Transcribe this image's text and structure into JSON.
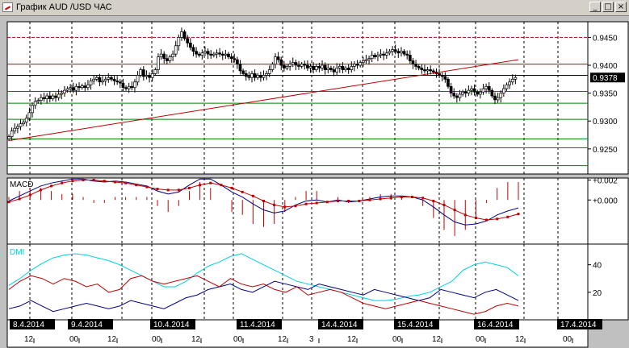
{
  "window": {
    "title": "График AUD /USD ЧАС",
    "buttons": [
      {
        "name": "minimize-button",
        "glyph": "_"
      },
      {
        "name": "maximize-button",
        "glyph": "□"
      },
      {
        "name": "close-button",
        "glyph": "×"
      }
    ]
  },
  "colors": {
    "background": "#FFFFFF",
    "grid": "#000000",
    "candle": "#000000",
    "support": "#008000",
    "resistance": "#C00000",
    "trendline": "#C00000",
    "macd_line": "#000080",
    "macd_signal": "#C00000",
    "macd_hist": "#C00000",
    "dmi_adx": "#00D0E0",
    "dmi_plus": "#000080",
    "dmi_minus": "#C00000",
    "price_tag_bg": "#000000",
    "price_tag_fg": "#FFFFFF"
  },
  "chart_data": [
    {
      "type": "candlestick",
      "title": "",
      "ylim": [
        0.9205,
        0.9478
      ],
      "yticks": [
        "0.9450",
        "0.9400",
        "0.9350",
        "0.9300",
        "0.9250"
      ],
      "last_price": "0.9378",
      "resistance_levels": [
        0.945,
        0.9402
      ],
      "mid_levels": [
        0.9382
      ],
      "support_levels": [
        0.9353,
        0.9332,
        0.9303,
        0.9268,
        0.9252,
        0.922
      ],
      "trendline": {
        "from": [
          0,
          0.9265
        ],
        "to": [
          174,
          0.941
        ]
      },
      "closes": [
        0.9272,
        0.9282,
        0.9287,
        0.929,
        0.9295,
        0.9298,
        0.9305,
        0.9315,
        0.9328,
        0.9335,
        0.9337,
        0.9342,
        0.934,
        0.9345,
        0.934,
        0.9345,
        0.9342,
        0.9348,
        0.935,
        0.9355,
        0.9358,
        0.936,
        0.9355,
        0.9362,
        0.936,
        0.9363,
        0.936,
        0.9365,
        0.9372,
        0.9375,
        0.9378,
        0.937,
        0.9372,
        0.9375,
        0.9378,
        0.9375,
        0.9372,
        0.937,
        0.9368,
        0.936,
        0.9358,
        0.9362,
        0.936,
        0.937,
        0.9382,
        0.9392,
        0.938,
        0.9382,
        0.9378,
        0.9385,
        0.9392,
        0.9415,
        0.942,
        0.9412,
        0.9408,
        0.9415,
        0.942,
        0.9435,
        0.945,
        0.946,
        0.9448,
        0.944,
        0.9432,
        0.9425,
        0.942,
        0.9418,
        0.9422,
        0.9425,
        0.942,
        0.9418,
        0.942,
        0.9422,
        0.942,
        0.9418,
        0.942,
        0.9415,
        0.9412,
        0.941,
        0.9402,
        0.939,
        0.9385,
        0.938,
        0.9378,
        0.9385,
        0.9378,
        0.9382,
        0.9378,
        0.9382,
        0.9385,
        0.9392,
        0.9402,
        0.9415,
        0.941,
        0.94,
        0.9395,
        0.9398,
        0.9402,
        0.9405,
        0.94,
        0.9398,
        0.9402,
        0.94,
        0.9395,
        0.9398,
        0.9392,
        0.9398,
        0.9395,
        0.94,
        0.9392,
        0.9395,
        0.9392,
        0.9388,
        0.9395,
        0.9398,
        0.9392,
        0.9395,
        0.9392,
        0.9398,
        0.9402,
        0.94,
        0.9405,
        0.9408,
        0.941,
        0.9412,
        0.9418,
        0.9415,
        0.9418,
        0.942,
        0.9418,
        0.9422,
        0.9425,
        0.9428,
        0.9425,
        0.9422,
        0.9425,
        0.942,
        0.9418,
        0.9408,
        0.9402,
        0.9398,
        0.9395,
        0.9392,
        0.939,
        0.9392,
        0.939,
        0.9388,
        0.9385,
        0.9382,
        0.938,
        0.9375,
        0.9362,
        0.935,
        0.9345,
        0.9342,
        0.9348,
        0.9352,
        0.935,
        0.9355,
        0.9358,
        0.9352,
        0.9348,
        0.9352,
        0.9358,
        0.9362,
        0.9355,
        0.9345,
        0.9338,
        0.9342,
        0.935,
        0.9358,
        0.9365,
        0.937,
        0.9375,
        0.9378
      ]
    },
    {
      "type": "line",
      "title": "MACD",
      "ylim": [
        -0.0045,
        0.0022
      ],
      "yticks": [
        "+0.002",
        "+0.000"
      ],
      "series": [
        {
          "role": "macd",
          "values": [
            -0.0001,
            0.0004,
            0.0009,
            0.0014,
            0.0017,
            0.0019,
            0.0021,
            0.0021,
            0.0019,
            0.0018,
            0.0019,
            0.0018,
            0.0016,
            0.0014,
            0.0009,
            0.0006,
            0.0008,
            0.0015,
            0.0021,
            0.0021,
            0.0015,
            0.0008,
            0.0003,
            -0.0004,
            -0.001,
            -0.0013,
            -0.0011,
            -0.0005,
            -0.0001,
            0.0,
            -0.0002,
            0.0,
            -0.0002,
            -0.0001,
            0.0001,
            0.0003,
            0.0004,
            0.0004,
            0.0003,
            0.0,
            -0.0007,
            -0.0015,
            -0.0022,
            -0.0025,
            -0.0024,
            -0.0021,
            -0.0015,
            -0.0011,
            -0.0008
          ]
        },
        {
          "role": "signal",
          "values": [
            -0.0002,
            0.0001,
            0.0005,
            0.001,
            0.0014,
            0.0017,
            0.0019,
            0.002,
            0.002,
            0.0019,
            0.0018,
            0.0017,
            0.0015,
            0.0013,
            0.0011,
            0.001,
            0.001,
            0.0012,
            0.0015,
            0.0017,
            0.0015,
            0.0012,
            0.0008,
            0.0004,
            -0.0001,
            -0.0005,
            -0.0007,
            -0.0006,
            -0.0004,
            -0.0003,
            -0.0002,
            -0.0001,
            -0.0001,
            -0.0001,
            0.0,
            0.0001,
            0.0002,
            0.0003,
            0.0003,
            0.0002,
            -0.0001,
            -0.0005,
            -0.001,
            -0.0015,
            -0.0018,
            -0.002,
            -0.0019,
            -0.0017,
            -0.0014
          ]
        }
      ]
    },
    {
      "type": "line",
      "title": "DMI",
      "ylim": [
        0,
        55
      ],
      "yticks": [
        "40",
        "20"
      ],
      "series": [
        {
          "role": "adx",
          "values": [
            25,
            30,
            36,
            41,
            45,
            47,
            48,
            47,
            45,
            43,
            40,
            36,
            32,
            28,
            24,
            24,
            28,
            34,
            39,
            42,
            46,
            48,
            44,
            40,
            36,
            32,
            28,
            26,
            24,
            22,
            20,
            18,
            16,
            14,
            14,
            15,
            17,
            18,
            20,
            24,
            28,
            36,
            40,
            42,
            40,
            38,
            32
          ]
        },
        {
          "role": "di-plus",
          "values": [
            8,
            10,
            14,
            10,
            6,
            8,
            10,
            12,
            10,
            8,
            10,
            14,
            12,
            10,
            8,
            12,
            16,
            18,
            22,
            24,
            26,
            22,
            20,
            24,
            28,
            26,
            24,
            22,
            26,
            24,
            22,
            20,
            18,
            22,
            20,
            18,
            16,
            14,
            16,
            22,
            20,
            18,
            16,
            20,
            22,
            18,
            14
          ]
        },
        {
          "role": "di-minus",
          "values": [
            22,
            28,
            32,
            30,
            26,
            30,
            28,
            24,
            26,
            20,
            22,
            30,
            32,
            28,
            26,
            28,
            30,
            32,
            28,
            24,
            30,
            26,
            24,
            26,
            22,
            20,
            24,
            18,
            20,
            22,
            20,
            16,
            12,
            10,
            8,
            10,
            12,
            14,
            12,
            10,
            8,
            6,
            4,
            6,
            10,
            12,
            10
          ]
        }
      ]
    }
  ],
  "time_axis": {
    "date_labels": [
      "8.4.2014",
      "9.4.2014",
      "10.4.2014",
      "11.4.2014",
      "14.4.2014",
      "15.4.2014",
      "16.4.2014",
      "17.4.2014"
    ],
    "hour_labels": [
      "12",
      "00",
      "12",
      "00",
      "12",
      "00",
      "12",
      "3",
      "12",
      "00",
      "12",
      "00",
      "12",
      "00"
    ]
  }
}
